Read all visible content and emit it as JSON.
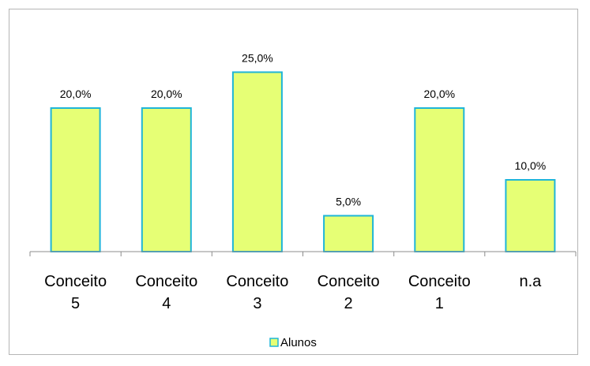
{
  "chart_data": {
    "type": "bar",
    "categories": [
      [
        "Conceito",
        "5"
      ],
      [
        "Conceito",
        "4"
      ],
      [
        "Conceito",
        "3"
      ],
      [
        "Conceito",
        "2"
      ],
      [
        "Conceito",
        "1"
      ],
      [
        "n.a"
      ]
    ],
    "series": [
      {
        "name": "Alunos",
        "values": [
          20.0,
          20.0,
          25.0,
          5.0,
          20.0,
          10.0
        ],
        "labels": [
          "20,0%",
          "20,0%",
          "25,0%",
          "5,0%",
          "20,0%",
          "10,0%"
        ],
        "color": "#E6FF75",
        "border_color": "#1FB5D8"
      }
    ],
    "ylim": [
      0,
      30
    ],
    "y_unit": "%",
    "grid": false,
    "y_axis_visible": false,
    "legend": "bottom",
    "title": "",
    "xlabel": "",
    "ylabel": ""
  }
}
